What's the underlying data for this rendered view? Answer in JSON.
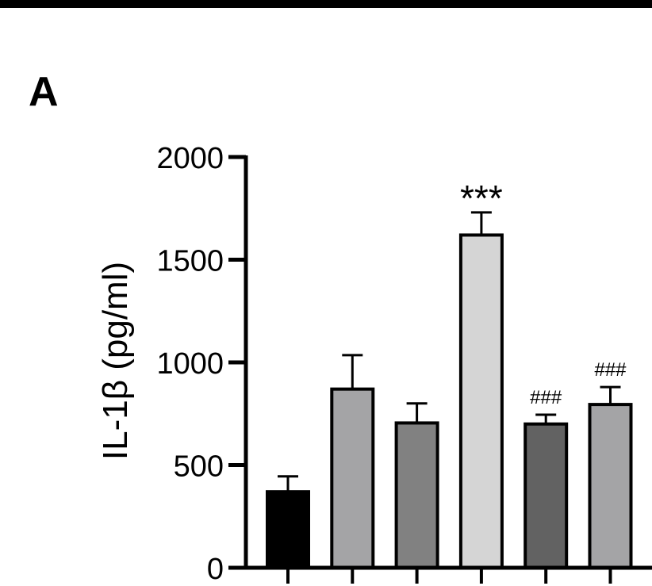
{
  "panel_label": "A",
  "chart_data": {
    "type": "bar",
    "ylabel": "IL-1β (pg/ml)",
    "ylim": [
      0,
      2000
    ],
    "yticks": [
      0,
      500,
      1000,
      1500,
      2000
    ],
    "bars": [
      {
        "value": 370,
        "error": 75,
        "color": "#000000",
        "annotation": ""
      },
      {
        "value": 870,
        "error": 165,
        "color": "#a4a4a6",
        "annotation": ""
      },
      {
        "value": 705,
        "error": 95,
        "color": "#818181",
        "annotation": ""
      },
      {
        "value": 1620,
        "error": 110,
        "color": "#d5d5d5",
        "annotation": "***"
      },
      {
        "value": 700,
        "error": 45,
        "color": "#626262",
        "annotation": "###"
      },
      {
        "value": 795,
        "error": 85,
        "color": "#a4a4a6",
        "annotation": "###"
      }
    ]
  }
}
